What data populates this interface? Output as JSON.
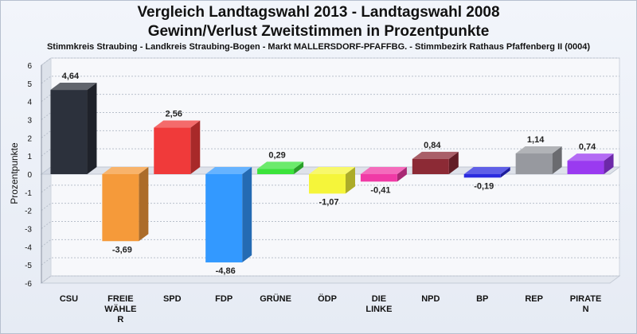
{
  "chart_data": {
    "type": "bar",
    "title": "Vergleich Landtagswahl 2013 - Landtagswahl 2008",
    "title2": "Gewinn/Verlust Zweitstimmen in Prozentpunkte",
    "subtitle": "Stimmkreis Straubing - Landkreis Straubing-Bogen - Markt MALLERSDORF-PFAFFBG. - Stimmbezirk Rathaus Pfaffenberg II (0004)",
    "ylabel": "Prozentpunkte",
    "xlabel": "",
    "ylim": [
      -6,
      6
    ],
    "yticks": [
      6,
      5,
      4,
      3,
      2,
      1,
      0,
      -1,
      -2,
      -3,
      -4,
      -5,
      -6
    ],
    "grid": true,
    "categories": [
      [
        "CSU"
      ],
      [
        "FREIE",
        "WÄHLE",
        "R"
      ],
      [
        "SPD"
      ],
      [
        "FDP"
      ],
      [
        "GRÜNE"
      ],
      [
        "ÖDP"
      ],
      [
        "DIE",
        "LINKE"
      ],
      [
        "NPD"
      ],
      [
        "BP"
      ],
      [
        "REP"
      ],
      [
        "PIRATE",
        "N"
      ]
    ],
    "values": [
      4.64,
      -3.69,
      2.56,
      -4.86,
      0.29,
      -1.07,
      -0.41,
      0.84,
      -0.19,
      1.14,
      0.74
    ],
    "value_labels": [
      "4,64",
      "-3,69",
      "2,56",
      "-4,86",
      "0,29",
      "-1,07",
      "-0,41",
      "0,84",
      "-0,19",
      "1,14",
      "0,74"
    ],
    "colors": [
      "#2c313c",
      "#f59a3a",
      "#f03a3a",
      "#3399ff",
      "#3be33b",
      "#f5f53a",
      "#f03aa6",
      "#8c2a35",
      "#2a2adf",
      "#97999f",
      "#9a3af0"
    ]
  }
}
